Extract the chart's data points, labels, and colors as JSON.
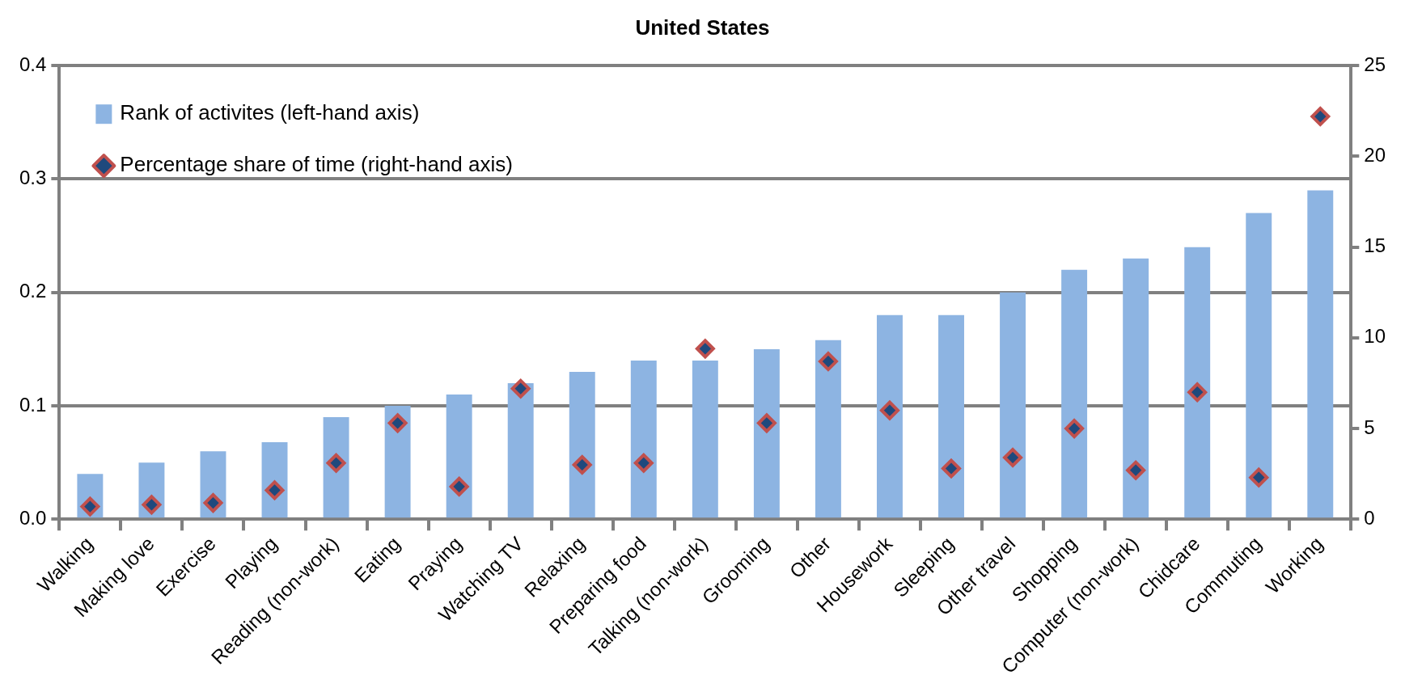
{
  "chart_data": {
    "type": "bar",
    "title": "United States",
    "categories": [
      "Walking",
      "Making love",
      "Exercise",
      "Playing",
      "Reading (non-work)",
      "Eating",
      "Praying",
      "Watching TV",
      "Relaxing",
      "Preparing food",
      "Talking (non-work)",
      "Grooming",
      "Other",
      "Housework",
      "Sleeping",
      "Other travel",
      "Shopping",
      "Computer (non-work)",
      "Chidcare",
      "Commuting",
      "Working"
    ],
    "series": [
      {
        "name": "Rank of activites (left-hand axis)",
        "color": "#8db4e2",
        "values": [
          0.04,
          0.05,
          0.06,
          0.068,
          0.09,
          0.1,
          0.11,
          0.12,
          0.13,
          0.14,
          0.14,
          0.15,
          0.158,
          0.18,
          0.18,
          0.2,
          0.22,
          0.23,
          0.24,
          0.27,
          0.29
        ]
      },
      {
        "name": "Percentage share of time (right-hand axis)",
        "type": "scatter",
        "axis": "y2",
        "color": "#1f497d",
        "marker": "diamond",
        "values": [
          0.7,
          0.8,
          0.9,
          1.6,
          3.1,
          5.3,
          1.8,
          7.2,
          3.0,
          3.1,
          9.4,
          5.3,
          8.7,
          6.0,
          2.8,
          3.4,
          5.0,
          2.7,
          7.0,
          2.3,
          22.2
        ]
      }
    ],
    "ylim": [
      0,
      0.4
    ],
    "yticks": [
      {
        "value": 0,
        "label": "0.0"
      },
      0.1,
      0.2,
      0.3,
      0.4
    ],
    "y2lim": [
      0,
      25
    ],
    "y2ticks": [
      0,
      5,
      10,
      15,
      20,
      25
    ],
    "grid": "y",
    "legend": "top left"
  }
}
